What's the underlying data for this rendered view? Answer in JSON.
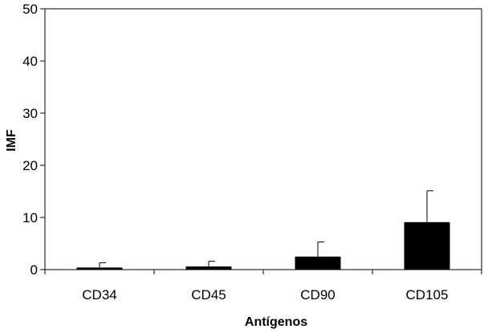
{
  "chart_data": {
    "type": "bar",
    "categories": [
      "CD34",
      "CD45",
      "CD90",
      "CD105"
    ],
    "values": [
      0.4,
      0.6,
      2.5,
      9.1
    ],
    "error_upper": [
      1.3,
      1.6,
      5.3,
      15.1
    ],
    "xlabel": "Antígenos",
    "ylabel": "IMF",
    "ylim": [
      0,
      50
    ],
    "yticks": [
      0,
      10,
      20,
      30,
      40,
      50
    ],
    "ytick_labels": [
      "0",
      "10",
      "20",
      "30",
      "40",
      "50"
    ],
    "grid": false,
    "bar_color": "#000000"
  }
}
